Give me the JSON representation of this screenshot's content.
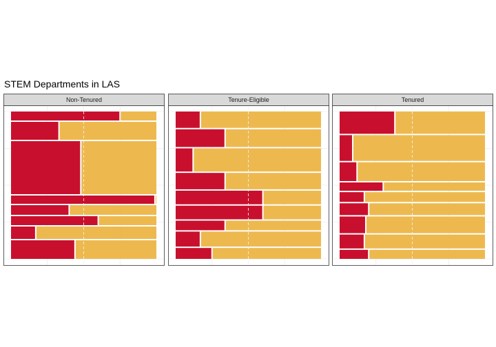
{
  "chart_data": {
    "type": "mosaic",
    "title": "STEM Departments in LAS",
    "xlabel": "",
    "ylabel": "",
    "grid": true,
    "colors": {
      "first": "#C8102E",
      "second": "#EDB94F"
    },
    "panels": [
      {
        "name": "Non-Tenured",
        "rows": [
          {
            "height": 0.065,
            "first": 0.75
          },
          {
            "height": 0.13,
            "first": 0.33
          },
          {
            "height": 0.385,
            "first": 0.48
          },
          {
            "height": 0.06,
            "first": 0.99
          },
          {
            "height": 0.07,
            "first": 0.4
          },
          {
            "height": 0.065,
            "first": 0.6
          },
          {
            "height": 0.09,
            "first": 0.17
          },
          {
            "height": 0.135,
            "first": 0.44
          }
        ]
      },
      {
        "name": "Tenure-Eligible",
        "rows": [
          {
            "height": 0.12,
            "first": 0.17
          },
          {
            "height": 0.13,
            "first": 0.34
          },
          {
            "height": 0.17,
            "first": 0.12
          },
          {
            "height": 0.12,
            "first": 0.34
          },
          {
            "height": 0.1,
            "first": 0.6
          },
          {
            "height": 0.1,
            "first": 0.6
          },
          {
            "height": 0.07,
            "first": 0.34
          },
          {
            "height": 0.11,
            "first": 0.17
          },
          {
            "height": 0.08,
            "first": 0.25
          }
        ]
      },
      {
        "name": "Tenured",
        "rows": [
          {
            "height": 0.16,
            "first": 0.38
          },
          {
            "height": 0.185,
            "first": 0.09
          },
          {
            "height": 0.135,
            "first": 0.12
          },
          {
            "height": 0.06,
            "first": 0.3
          },
          {
            "height": 0.07,
            "first": 0.17
          },
          {
            "height": 0.085,
            "first": 0.2
          },
          {
            "height": 0.12,
            "first": 0.18
          },
          {
            "height": 0.1,
            "first": 0.17
          },
          {
            "height": 0.065,
            "first": 0.2
          }
        ]
      }
    ]
  }
}
